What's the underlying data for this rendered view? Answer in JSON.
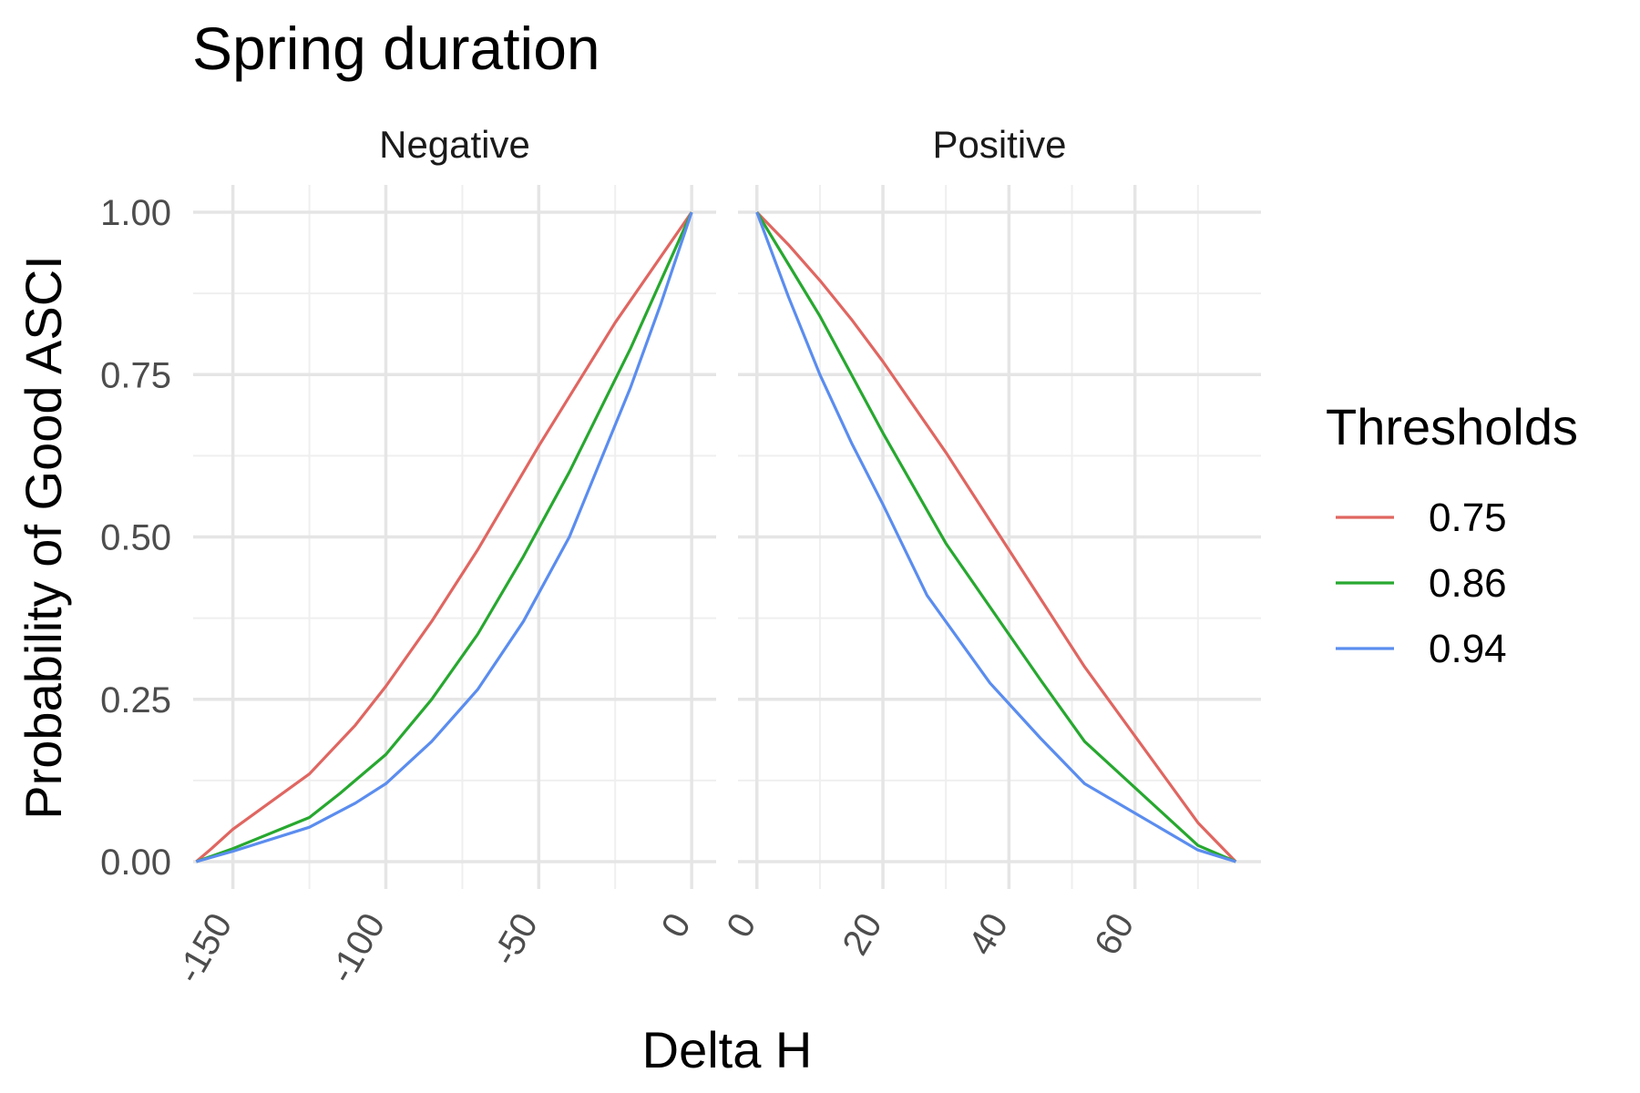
{
  "chart_data": {
    "type": "line",
    "title": "Spring duration",
    "xlabel": "Delta H",
    "ylabel": "Probability of Good ASCI",
    "ylim": [
      0,
      1
    ],
    "y_ticks": [
      0,
      0.25,
      0.5,
      0.75,
      1
    ],
    "y_tick_labels": [
      "0.00",
      "0.25",
      "0.50",
      "0.75",
      "1.00"
    ],
    "grid": true,
    "legend": {
      "title": "Thresholds",
      "position": "right",
      "entries": [
        {
          "label": "0.75",
          "color": "#e06661"
        },
        {
          "label": "0.86",
          "color": "#27a82f"
        },
        {
          "label": "0.94",
          "color": "#5b8def"
        }
      ]
    },
    "panels": [
      {
        "name": "Negative",
        "xlim": [
          -163,
          8
        ],
        "x_ticks": [
          -150,
          -100,
          -50,
          0
        ],
        "x_tick_labels": [
          "-150",
          "-100",
          "-50",
          "0"
        ],
        "series": [
          {
            "name": "0.75",
            "color": "#e06661",
            "points": [
              [
                -162,
                0
              ],
              [
                -157,
                0.02
              ],
              [
                -150,
                0.05
              ],
              [
                -125,
                0.135
              ],
              [
                -110,
                0.21
              ],
              [
                -100,
                0.27
              ],
              [
                -85,
                0.37
              ],
              [
                -70,
                0.48
              ],
              [
                -50,
                0.64
              ],
              [
                -25,
                0.83
              ],
              [
                0,
                1
              ]
            ]
          },
          {
            "name": "0.86",
            "color": "#27a82f",
            "points": [
              [
                -162,
                0
              ],
              [
                -150,
                0.02
              ],
              [
                -125,
                0.068
              ],
              [
                -115,
                0.105
              ],
              [
                -100,
                0.165
              ],
              [
                -85,
                0.25
              ],
              [
                -70,
                0.35
              ],
              [
                -55,
                0.47
              ],
              [
                -40,
                0.6
              ],
              [
                -20,
                0.79
              ],
              [
                0,
                1
              ]
            ]
          },
          {
            "name": "0.94",
            "color": "#5b8def",
            "points": [
              [
                -162,
                0
              ],
              [
                -150,
                0.016
              ],
              [
                -125,
                0.053
              ],
              [
                -110,
                0.09
              ],
              [
                -100,
                0.12
              ],
              [
                -85,
                0.185
              ],
              [
                -70,
                0.265
              ],
              [
                -55,
                0.37
              ],
              [
                -40,
                0.5
              ],
              [
                -20,
                0.73
              ],
              [
                -10,
                0.86
              ],
              [
                0,
                1
              ]
            ]
          }
        ]
      },
      {
        "name": "Positive",
        "xlim": [
          -3,
          80
        ],
        "x_ticks": [
          0,
          20,
          40,
          60
        ],
        "x_tick_labels": [
          "0",
          "20",
          "40",
          "60"
        ],
        "series": [
          {
            "name": "0.75",
            "color": "#e06661",
            "points": [
              [
                0,
                1
              ],
              [
                5,
                0.95
              ],
              [
                10,
                0.895
              ],
              [
                15,
                0.835
              ],
              [
                20,
                0.77
              ],
              [
                30,
                0.63
              ],
              [
                40,
                0.48
              ],
              [
                52,
                0.3
              ],
              [
                70,
                0.06
              ],
              [
                76,
                0
              ]
            ]
          },
          {
            "name": "0.86",
            "color": "#27a82f",
            "points": [
              [
                0,
                1
              ],
              [
                5,
                0.92
              ],
              [
                10,
                0.84
              ],
              [
                15,
                0.75
              ],
              [
                20,
                0.66
              ],
              [
                30,
                0.49
              ],
              [
                40,
                0.35
              ],
              [
                45,
                0.28
              ],
              [
                52,
                0.185
              ],
              [
                70,
                0.025
              ],
              [
                76,
                0
              ]
            ]
          },
          {
            "name": "0.94",
            "color": "#5b8def",
            "points": [
              [
                0,
                1
              ],
              [
                5,
                0.87
              ],
              [
                10,
                0.75
              ],
              [
                15,
                0.645
              ],
              [
                20,
                0.55
              ],
              [
                27,
                0.41
              ],
              [
                37,
                0.275
              ],
              [
                45,
                0.19
              ],
              [
                52,
                0.12
              ],
              [
                70,
                0.018
              ],
              [
                76,
                0
              ]
            ]
          }
        ]
      }
    ]
  }
}
